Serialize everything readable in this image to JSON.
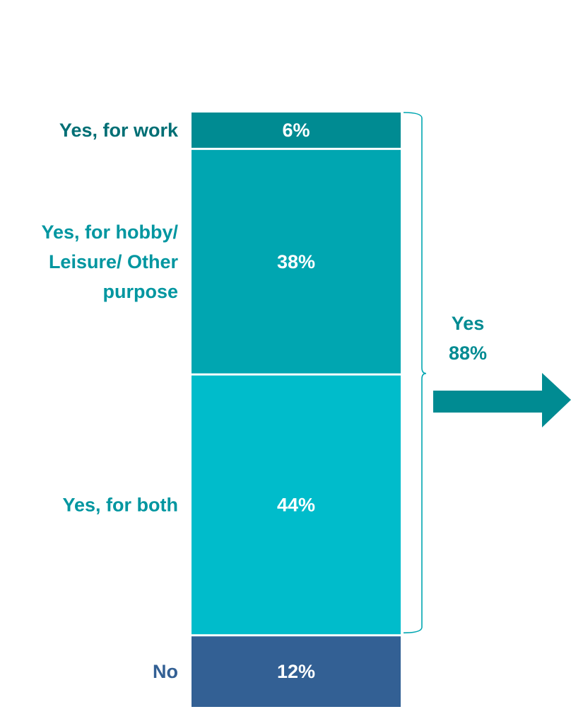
{
  "chart_data": {
    "type": "bar",
    "stacked": true,
    "orientation": "vertical",
    "segments": [
      {
        "category": [
          "Yes, for work"
        ],
        "value": 6,
        "label": "6%",
        "color": "#008b92",
        "label_color": "#006f75"
      },
      {
        "category": [
          "Yes, for hobby/",
          "Leisure/ Other",
          "purpose"
        ],
        "value": 38,
        "label": "38%",
        "color": "#00a6b1",
        "label_color": "#0096a0"
      },
      {
        "category": [
          "Yes, for both"
        ],
        "value": 44,
        "label": "44%",
        "color": "#00bccb",
        "label_color": "#0096a0"
      },
      {
        "category": [
          "No"
        ],
        "value": 12,
        "label": "12%",
        "color": "#336094",
        "label_color": "#336094"
      }
    ],
    "summary": {
      "lines": [
        "Yes",
        "88%"
      ],
      "value": 88,
      "color": "#008b92"
    },
    "arrow_color": "#008b92",
    "bracket_color": "#00a6b1"
  }
}
